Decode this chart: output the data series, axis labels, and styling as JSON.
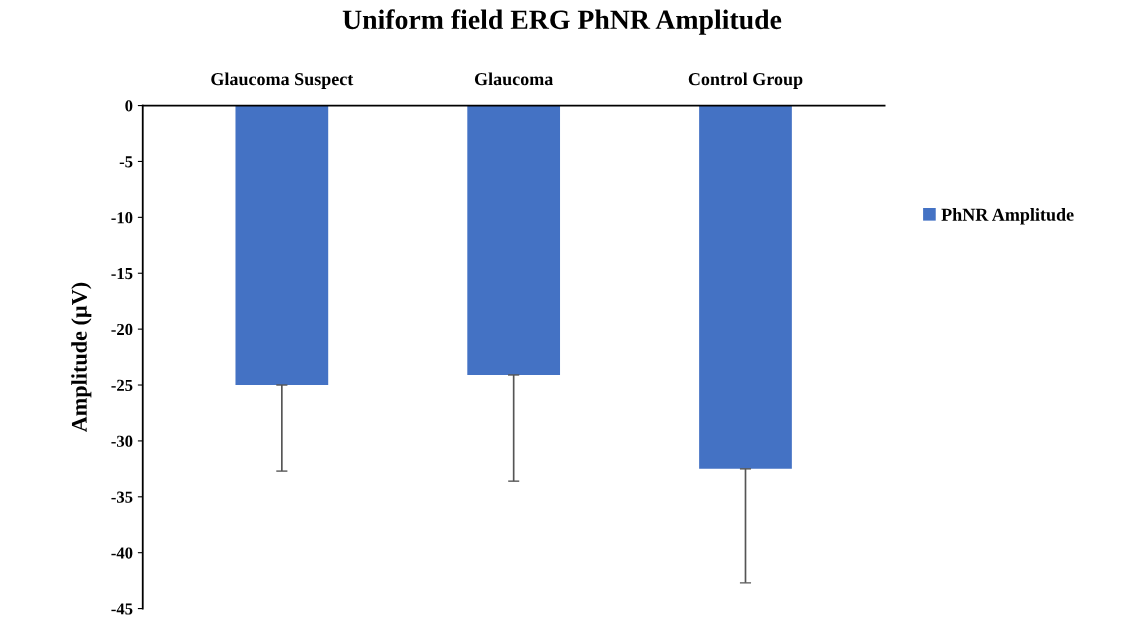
{
  "chart_data": {
    "type": "bar",
    "title": "Uniform field ERG PhNR Amplitude",
    "ylabel": "Amplitude (µV)",
    "categories": [
      "Glaucoma Suspect",
      "Glaucoma",
      "Control Group"
    ],
    "series": [
      {
        "name": "PhNR Amplitude",
        "color": "#4472c4",
        "values": [
          -25.0,
          -24.1,
          -32.5
        ],
        "errors": [
          [
            -32.7,
            -25.0
          ],
          [
            -33.6,
            -24.1
          ],
          [
            -42.7,
            -32.5
          ]
        ]
      }
    ],
    "ylim": [
      -45,
      0
    ],
    "yticks": [
      -45,
      -40,
      -35,
      -30,
      -25,
      -20,
      -15,
      -10,
      -5,
      0
    ],
    "grid": false,
    "legend": "right"
  }
}
